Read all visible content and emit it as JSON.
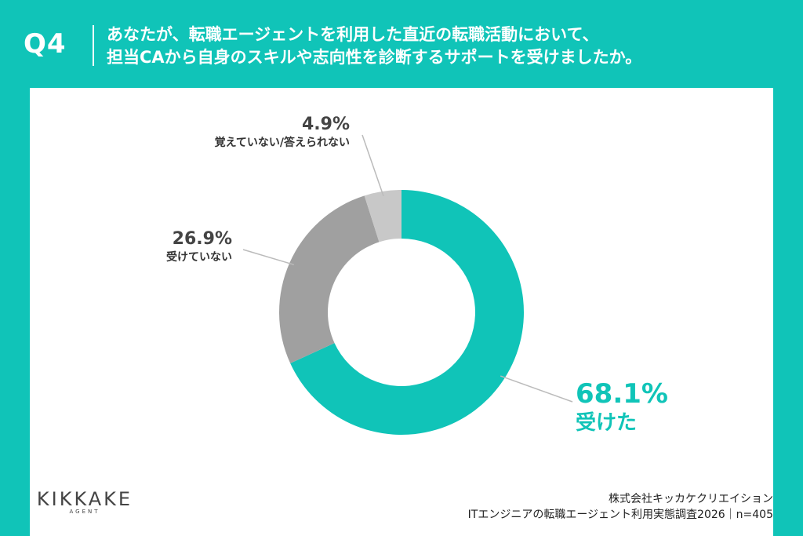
{
  "header": {
    "q_label": "Q4",
    "question_line1": "あなたが、転職エージェントを利用した直近の転職活動において、",
    "question_line2": "担当CAから自身のスキルや志向性を診断するサポートを受けましたか。"
  },
  "chart_data": {
    "type": "pie",
    "donut": true,
    "slices": [
      {
        "label": "受けた",
        "value": 68.1,
        "value_label": "68.1%",
        "color": "#10c4b8"
      },
      {
        "label": "受けていない",
        "value": 26.9,
        "value_label": "26.9%",
        "color": "#a0a0a0"
      },
      {
        "label": "覚えていない/答えられない",
        "value": 4.9,
        "value_label": "4.9%",
        "color": "#c8c8c8"
      }
    ]
  },
  "logo": {
    "main": "KIKKAKE",
    "sub": "AGENT"
  },
  "source": {
    "company": "株式会社キッカケクリエイション",
    "survey": "ITエンジニアの転職エージェント利用実態調査2026｜n=405"
  }
}
